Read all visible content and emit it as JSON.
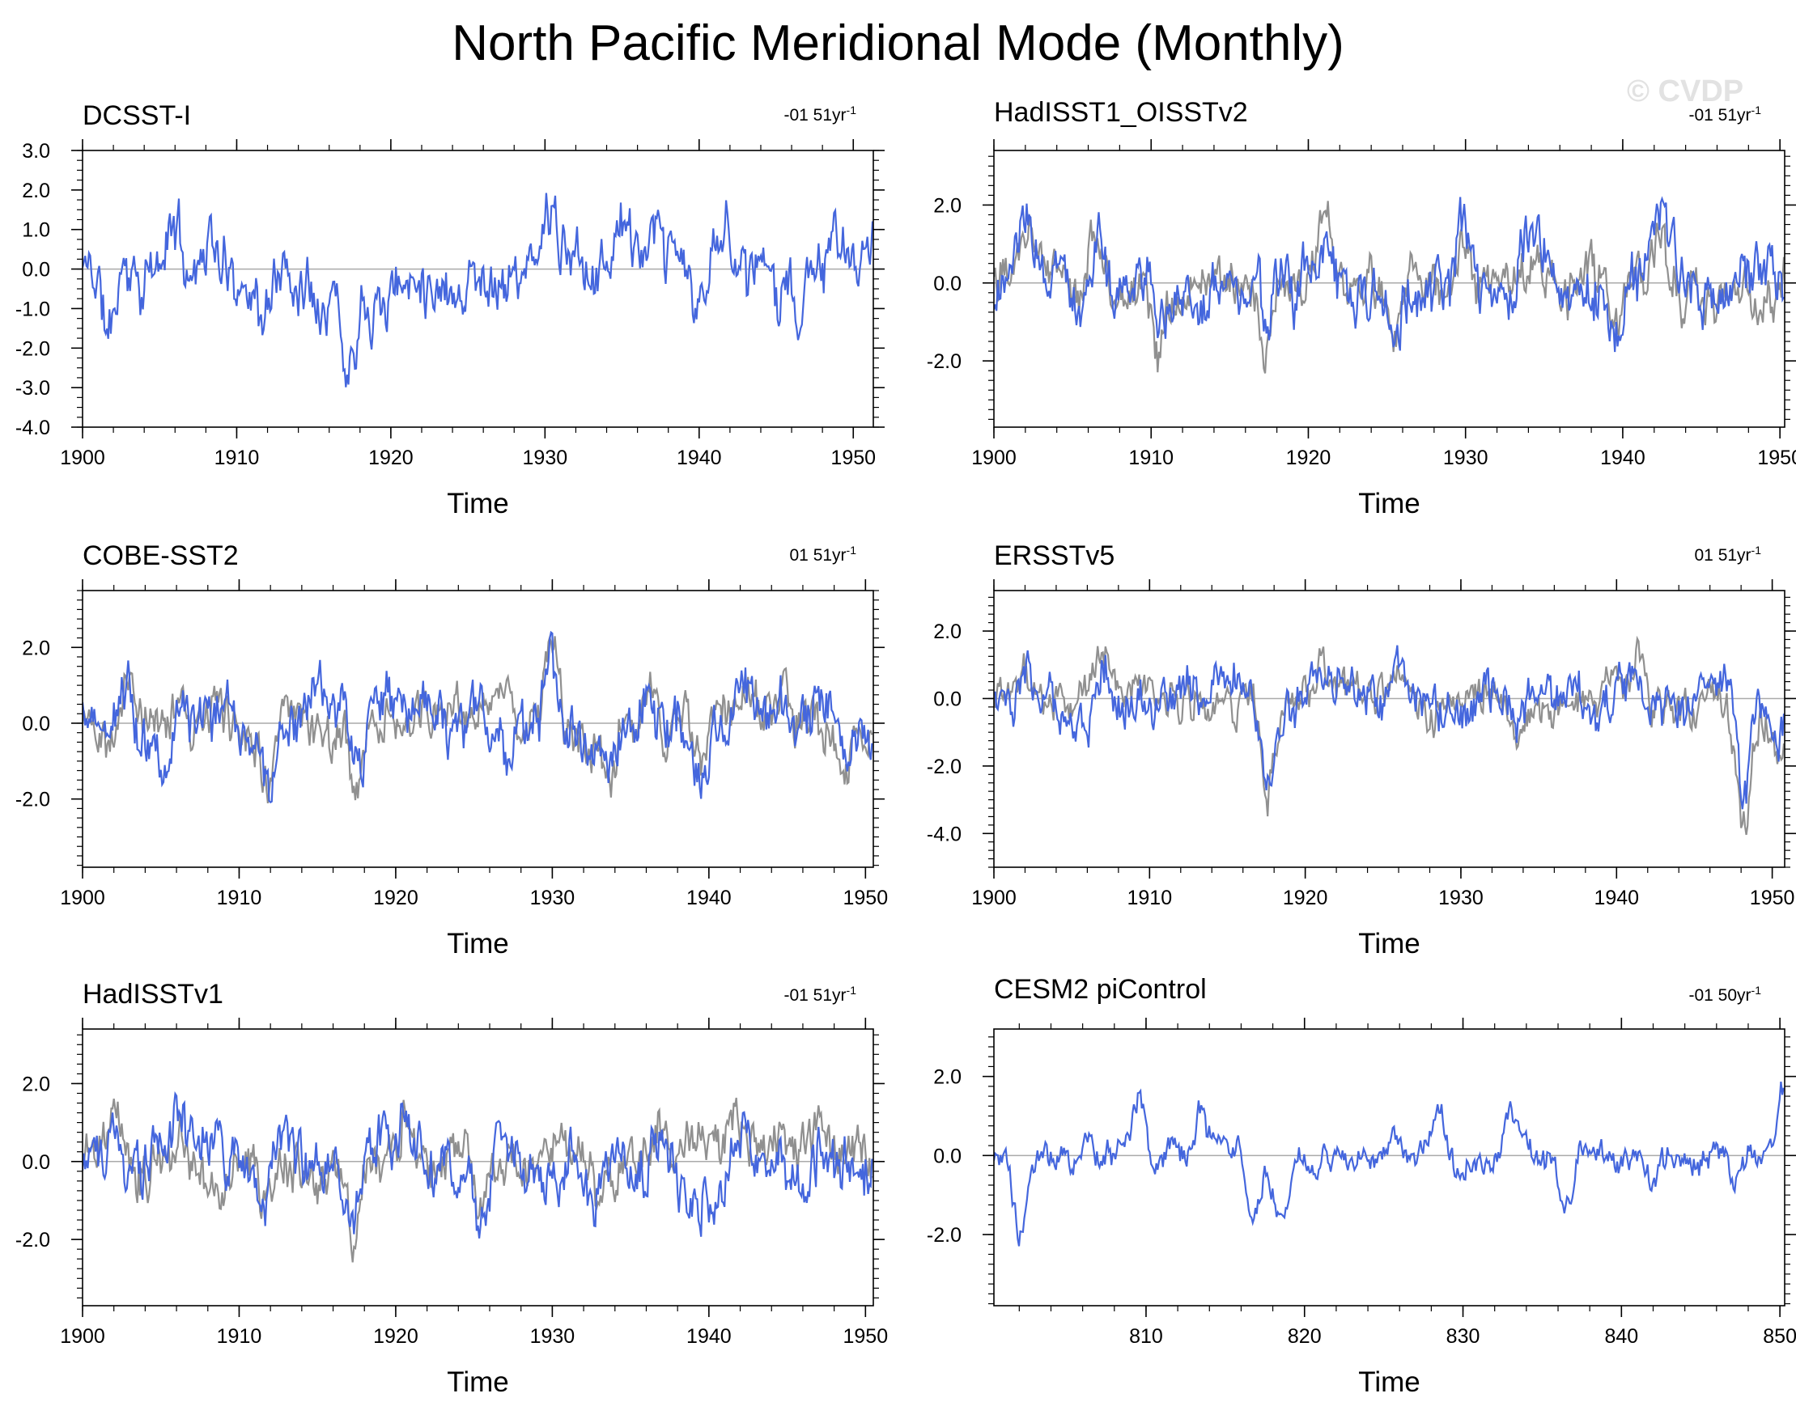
{
  "title": "North Pacific Meridional Mode (Monthly)",
  "watermark": "© CVDP",
  "colors": {
    "observed": "#4466dd",
    "reference": "#909090",
    "zero_line": "#aaaaaa",
    "frame": "#000000"
  },
  "panels": [
    {
      "title": "DCSST-I",
      "trend": "-01 51yr",
      "trend_exp": "-1",
      "xlabel": "Time",
      "xlim": [
        1900,
        1951.3
      ],
      "ylim": [
        -4.0,
        3.0
      ],
      "xticks": [
        "1900",
        "1910",
        "1920",
        "1930",
        "1940",
        "1950"
      ],
      "xtick_values": [
        1900,
        1910,
        1920,
        1930,
        1940,
        1950
      ],
      "yticks": [
        "3.0",
        "2.0",
        "1.0",
        "0.0",
        "-1.0",
        "-2.0",
        "-3.0",
        "-4.0"
      ],
      "ytick_values": [
        3,
        2,
        1,
        0,
        -1,
        -2,
        -3,
        -4
      ],
      "amp": 0.95,
      "seed": 11,
      "has_reference": false,
      "events": [
        [
          1901.7,
          -1.6
        ],
        [
          1905.9,
          1.0
        ],
        [
          1908.2,
          1.1
        ],
        [
          1911.8,
          -1.2
        ],
        [
          1917.2,
          -2.2
        ],
        [
          1930.4,
          1.6
        ],
        [
          1934.9,
          1.5
        ],
        [
          1939.8,
          -1.3
        ],
        [
          1941.9,
          1.3
        ],
        [
          1946.5,
          -1.0
        ]
      ]
    },
    {
      "title": "HadISST1_OISSTv2",
      "trend": "-01 51yr",
      "trend_exp": "-1",
      "xlabel": "Time",
      "xlim": [
        1900,
        1950.3
      ],
      "ylim": [
        -3.7,
        3.4
      ],
      "xticks": [
        "1900",
        "1910",
        "1920",
        "1930",
        "1940",
        "1950"
      ],
      "xtick_values": [
        1900,
        1910,
        1920,
        1930,
        1940,
        1950
      ],
      "yticks": [
        "2.0",
        "0.0",
        "-2.0"
      ],
      "ytick_values": [
        2,
        0,
        -2
      ],
      "amp": 0.95,
      "seed": 23,
      "has_reference": true,
      "events": [
        [
          1902.2,
          1.2
        ],
        [
          1906.5,
          1.1
        ],
        [
          1910.5,
          -1.4
        ],
        [
          1917.4,
          -1.8
        ],
        [
          1921.2,
          1.3
        ],
        [
          1925.5,
          -1.5
        ],
        [
          1929.8,
          1.0
        ],
        [
          1934.3,
          0.9
        ],
        [
          1939.5,
          -1.1
        ],
        [
          1942.5,
          1.2
        ]
      ]
    },
    {
      "title": "COBE-SST2",
      "trend": "01 51yr",
      "trend_exp": "-1",
      "xlabel": "Time",
      "xlim": [
        1900,
        1950.5
      ],
      "ylim": [
        -3.8,
        3.5
      ],
      "xticks": [
        "1900",
        "1910",
        "1920",
        "1930",
        "1940",
        "1950"
      ],
      "xtick_values": [
        1900,
        1910,
        1920,
        1930,
        1940,
        1950
      ],
      "yticks": [
        "2.0",
        "0.0",
        "-2.0"
      ],
      "ytick_values": [
        2,
        0,
        -2
      ],
      "amp": 0.95,
      "seed": 37,
      "has_reference": true,
      "events": [
        [
          1902.8,
          1.2
        ],
        [
          1906.3,
          1.0
        ],
        [
          1911.9,
          -1.3
        ],
        [
          1917.5,
          -1.8
        ],
        [
          1930.0,
          1.8
        ],
        [
          1933.5,
          -1.3
        ],
        [
          1936.2,
          0.9
        ],
        [
          1939.7,
          -1.2
        ],
        [
          1942.5,
          1.0
        ],
        [
          1948.6,
          -1.1
        ]
      ]
    },
    {
      "title": "ERSSTv5",
      "trend": "01 51yr",
      "trend_exp": "-1",
      "xlabel": "Time",
      "xlim": [
        1900,
        1950.8
      ],
      "ylim": [
        -5.0,
        3.2
      ],
      "xticks": [
        "1900",
        "1910",
        "1920",
        "1930",
        "1940",
        "1950"
      ],
      "xtick_values": [
        1900,
        1910,
        1920,
        1930,
        1940,
        1950
      ],
      "yticks": [
        "2.0",
        "0.0",
        "-2.0",
        "-4.0"
      ],
      "ytick_values": [
        2,
        0,
        -2,
        -4
      ],
      "amp": 0.85,
      "seed": 53,
      "has_reference": true,
      "events": [
        [
          1902.0,
          1.0
        ],
        [
          1907.0,
          1.2
        ],
        [
          1917.6,
          -2.8
        ],
        [
          1921.0,
          0.9
        ],
        [
          1926.0,
          0.8
        ],
        [
          1933.6,
          -1.1
        ],
        [
          1938.7,
          -1.0
        ],
        [
          1941.3,
          1.3
        ],
        [
          1948.2,
          -3.2
        ],
        [
          1950.5,
          -1.2
        ]
      ]
    },
    {
      "title": "HadISSTv1",
      "trend": "-01 51yr",
      "trend_exp": "-1",
      "xlabel": "Time",
      "xlim": [
        1900,
        1950.5
      ],
      "ylim": [
        -3.7,
        3.4
      ],
      "xticks": [
        "1900",
        "1910",
        "1920",
        "1930",
        "1940",
        "1950"
      ],
      "xtick_values": [
        1900,
        1910,
        1920,
        1930,
        1940,
        1950
      ],
      "yticks": [
        "2.0",
        "0.0",
        "-2.0"
      ],
      "ytick_values": [
        2,
        0,
        -2
      ],
      "amp": 0.95,
      "seed": 71,
      "has_reference": true,
      "events": [
        [
          1902.0,
          1.1
        ],
        [
          1906.2,
          1.2
        ],
        [
          1911.6,
          -1.4
        ],
        [
          1917.3,
          -1.8
        ],
        [
          1920.6,
          1.3
        ],
        [
          1925.5,
          -1.8
        ],
        [
          1933.0,
          -1.0
        ],
        [
          1936.8,
          1.0
        ],
        [
          1941.8,
          1.1
        ],
        [
          1947.2,
          0.8
        ]
      ]
    },
    {
      "title": "CESM2 piControl",
      "trend": "-01 50yr",
      "trend_exp": "-1",
      "xlabel": "Time",
      "xlim": [
        800.4,
        850.3
      ],
      "ylim": [
        -3.8,
        3.2
      ],
      "xticks": [
        "810",
        "820",
        "830",
        "840",
        "850"
      ],
      "xtick_values": [
        810,
        820,
        830,
        840,
        850
      ],
      "yticks": [
        "2.0",
        "0.0",
        "-2.0"
      ],
      "ytick_values": [
        2,
        0,
        -2
      ],
      "amp": 0.45,
      "seed": 97,
      "has_reference": false,
      "events": [
        [
          802.0,
          -2.2
        ],
        [
          806.5,
          0.8
        ],
        [
          809.5,
          1.6
        ],
        [
          813.5,
          0.9
        ],
        [
          816.8,
          -1.6
        ],
        [
          818.5,
          -1.4
        ],
        [
          828.5,
          1.2
        ],
        [
          833.0,
          1.2
        ],
        [
          836.5,
          -1.3
        ],
        [
          842.0,
          -0.8
        ],
        [
          847.2,
          -0.6
        ],
        [
          850.1,
          1.8
        ]
      ]
    }
  ]
}
